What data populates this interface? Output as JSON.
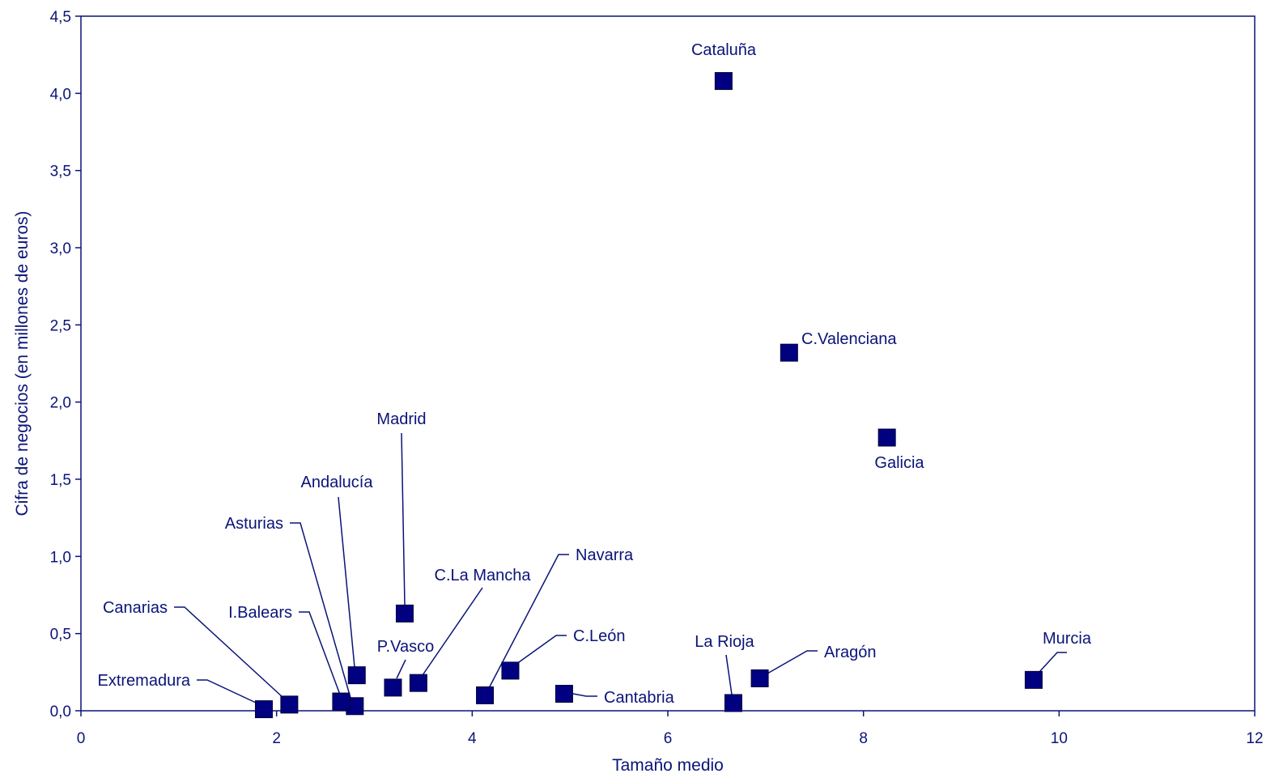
{
  "chart_data": {
    "type": "scatter",
    "title": "",
    "xlabel": "Tamaño medio",
    "ylabel": "Cifra de negocios (en millones de euros)",
    "xlim": [
      0,
      12
    ],
    "ylim": [
      0,
      4.5
    ],
    "x_ticks": [
      "0",
      "2",
      "4",
      "6",
      "8",
      "10",
      "12"
    ],
    "y_ticks": [
      "0,0",
      "0,5",
      "1,0",
      "1,5",
      "2,0",
      "2,5",
      "3,0",
      "3,5",
      "4,0",
      "4,5"
    ],
    "grid": false,
    "legend": "none",
    "marker_color": "#000080",
    "points": [
      {
        "label": "Cataluña",
        "x": 6.57,
        "y": 4.08
      },
      {
        "label": "C.Valenciana",
        "x": 7.24,
        "y": 2.32
      },
      {
        "label": "Galicia",
        "x": 8.24,
        "y": 1.77
      },
      {
        "label": "Madrid",
        "x": 3.31,
        "y": 0.63
      },
      {
        "label": "Andalucía",
        "x": 2.82,
        "y": 0.23
      },
      {
        "label": "Asturias",
        "x": 2.8,
        "y": 0.03
      },
      {
        "label": "I.Balears",
        "x": 2.66,
        "y": 0.06
      },
      {
        "label": "Canarias",
        "x": 2.13,
        "y": 0.04
      },
      {
        "label": "Extremadura",
        "x": 1.87,
        "y": 0.01
      },
      {
        "label": "P.Vasco",
        "x": 3.19,
        "y": 0.15
      },
      {
        "label": "C.La Mancha",
        "x": 3.45,
        "y": 0.18
      },
      {
        "label": "Navarra",
        "x": 4.13,
        "y": 0.1
      },
      {
        "label": "C.León",
        "x": 4.39,
        "y": 0.26
      },
      {
        "label": "Cantabria",
        "x": 4.94,
        "y": 0.11
      },
      {
        "label": "La Rioja",
        "x": 6.67,
        "y": 0.05
      },
      {
        "label": "Aragón",
        "x": 6.94,
        "y": 0.21
      },
      {
        "label": "Murcia",
        "x": 9.74,
        "y": 0.2
      }
    ]
  }
}
